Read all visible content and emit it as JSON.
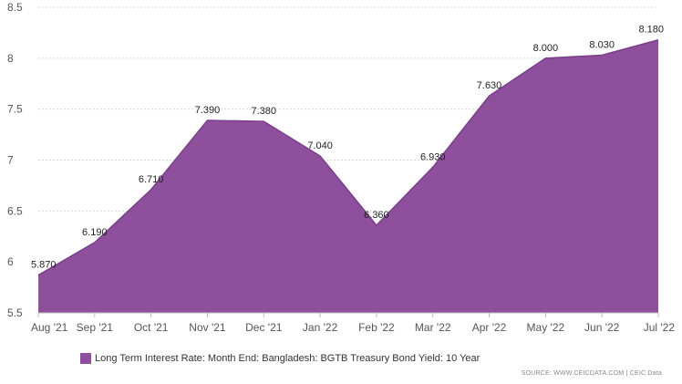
{
  "chart_data": {
    "type": "area",
    "x": [
      "Aug '21",
      "Sep '21",
      "Oct '21",
      "Nov '21",
      "Dec '21",
      "Jan '22",
      "Feb '22",
      "Mar '22",
      "Apr '22",
      "May '22",
      "Jun '22",
      "Jul '22"
    ],
    "series": [
      {
        "name": "Long Term Interest Rate: Month End: Bangladesh: BGTB Treasury Bond Yield: 10 Year",
        "values": [
          5.87,
          6.19,
          6.71,
          7.39,
          7.38,
          7.04,
          6.36,
          6.93,
          7.63,
          8.0,
          8.03,
          8.18
        ],
        "labels": [
          "5.870",
          "6.190",
          "6.710",
          "7.390",
          "7.380",
          "7.040",
          "6.360",
          "6.930",
          "7.630",
          "8.000",
          "8.030",
          "8.180"
        ],
        "color": "#8e4f9c"
      }
    ],
    "yticks": [
      "5.5",
      "6",
      "6.5",
      "7",
      "7.5",
      "8",
      "8.5"
    ],
    "ylim": [
      5.5,
      8.5
    ],
    "grid": true,
    "legend_position": "bottom-left",
    "source": "SOURCE: WWW.CEICDATA.COM | CEIC Data"
  }
}
